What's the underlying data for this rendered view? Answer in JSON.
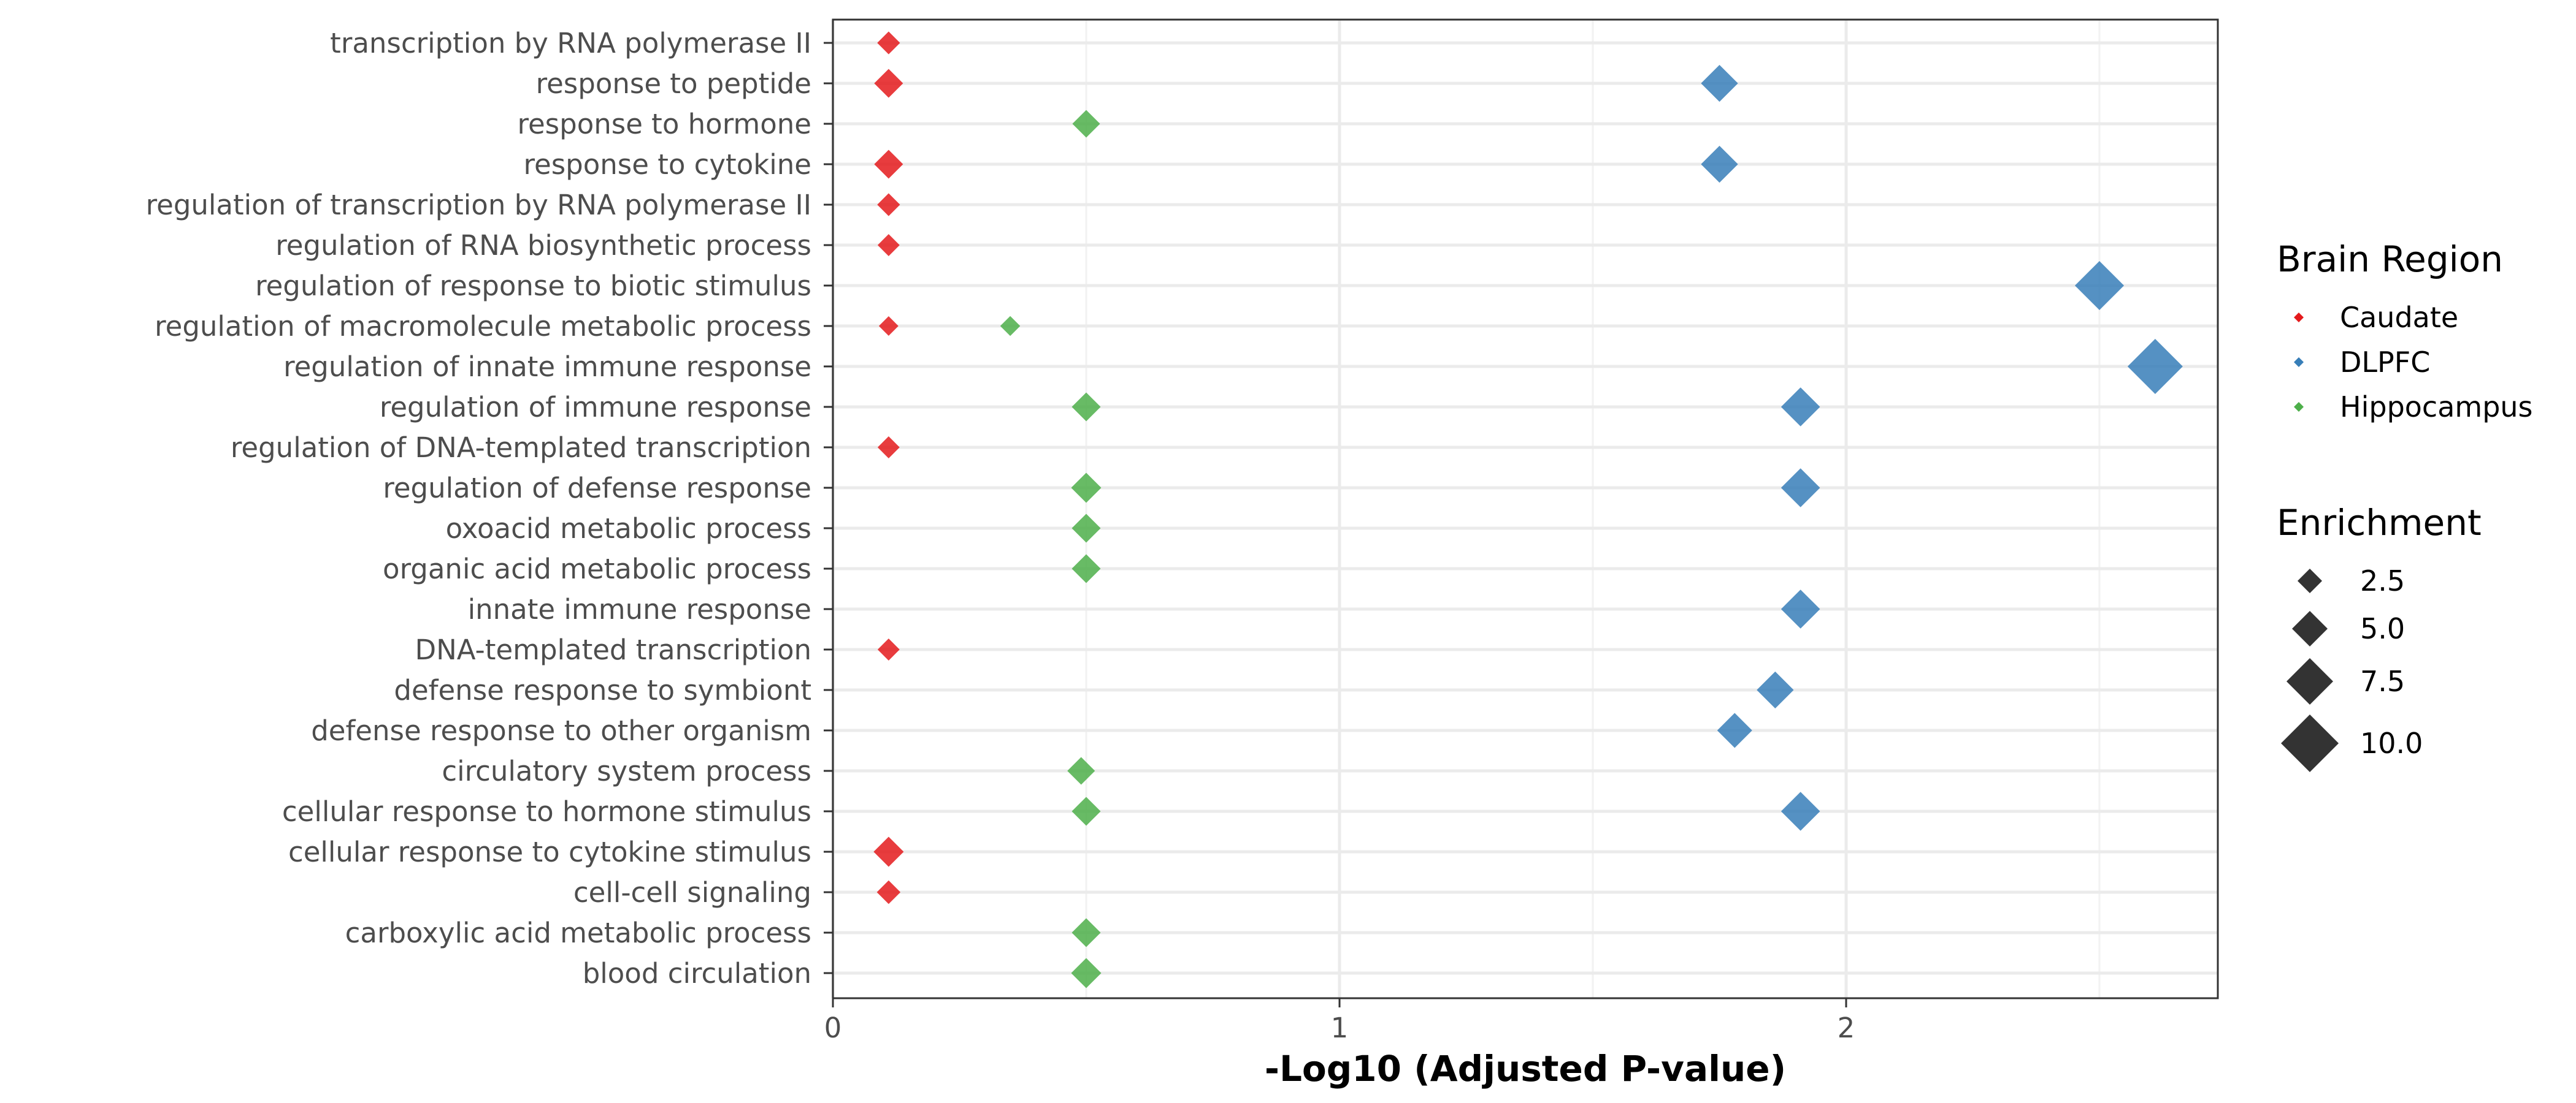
{
  "chart_data": {
    "type": "scatter",
    "xlabel": "-Log10 (Adjusted P-value)",
    "ylabel": "",
    "xlim": [
      0,
      2.72
    ],
    "x_ticks": [
      "0",
      "1",
      "2"
    ],
    "grid": true,
    "categories": [
      "transcription by RNA polymerase II",
      "response to peptide",
      "response to hormone",
      "response to cytokine",
      "regulation of transcription by RNA polymerase II",
      "regulation of RNA biosynthetic process",
      "regulation of response to biotic stimulus",
      "regulation of macromolecule metabolic process",
      "regulation of innate immune response",
      "regulation of immune response",
      "regulation of DNA-templated transcription",
      "regulation of defense response",
      "oxoacid metabolic process",
      "organic acid metabolic process",
      "innate immune response",
      "DNA-templated transcription",
      "defense response to symbiont",
      "defense response to other organism",
      "circulatory system process",
      "cellular response to hormone stimulus",
      "cellular response to cytokine stimulus",
      "cell-cell signaling",
      "carboxylic acid metabolic process",
      "blood circulation"
    ],
    "color_legend": {
      "title": "Brain Region",
      "entries": [
        {
          "name": "Caudate",
          "color": "#e41a1c"
        },
        {
          "name": "DLPFC",
          "color": "#377eb8"
        },
        {
          "name": "Hippocampus",
          "color": "#4daf4a"
        }
      ]
    },
    "size_legend": {
      "title": "Enrichment",
      "entries": [
        {
          "label": "2.5",
          "value": 2.5
        },
        {
          "label": "5.0",
          "value": 5.0
        },
        {
          "label": "7.5",
          "value": 7.5
        },
        {
          "label": "10.0",
          "value": 10.0
        }
      ]
    },
    "legend_position": "right",
    "series": [
      {
        "name": "Caudate",
        "points": [
          {
            "term": "transcription by RNA polymerase II",
            "x": 0.11,
            "enrichment": 2.0
          },
          {
            "term": "response to peptide",
            "x": 0.11,
            "enrichment": 3.5
          },
          {
            "term": "response to cytokine",
            "x": 0.11,
            "enrichment": 3.5
          },
          {
            "term": "regulation of transcription by RNA polymerase II",
            "x": 0.11,
            "enrichment": 2.0
          },
          {
            "term": "regulation of RNA biosynthetic process",
            "x": 0.11,
            "enrichment": 1.8
          },
          {
            "term": "regulation of macromolecule metabolic process",
            "x": 0.11,
            "enrichment": 1.2
          },
          {
            "term": "regulation of DNA-templated transcription",
            "x": 0.11,
            "enrichment": 1.8
          },
          {
            "term": "DNA-templated transcription",
            "x": 0.11,
            "enrichment": 1.8
          },
          {
            "term": "cellular response to cytokine stimulus",
            "x": 0.11,
            "enrichment": 3.8
          },
          {
            "term": "cell-cell signaling",
            "x": 0.11,
            "enrichment": 2.2
          }
        ]
      },
      {
        "name": "DLPFC",
        "points": [
          {
            "term": "response to peptide",
            "x": 1.75,
            "enrichment": 5.5
          },
          {
            "term": "response to cytokine",
            "x": 1.75,
            "enrichment": 5.5
          },
          {
            "term": "regulation of response to biotic stimulus",
            "x": 2.5,
            "enrichment": 8.5
          },
          {
            "term": "regulation of innate immune response",
            "x": 2.61,
            "enrichment": 10.0
          },
          {
            "term": "regulation of immune response",
            "x": 1.91,
            "enrichment": 6.0
          },
          {
            "term": "regulation of defense response",
            "x": 1.91,
            "enrichment": 6.0
          },
          {
            "term": "innate immune response",
            "x": 1.91,
            "enrichment": 6.0
          },
          {
            "term": "defense response to symbiont",
            "x": 1.86,
            "enrichment": 5.5
          },
          {
            "term": "defense response to other organism",
            "x": 1.78,
            "enrichment": 5.0
          },
          {
            "term": "cellular response to hormone stimulus",
            "x": 1.91,
            "enrichment": 6.0
          }
        ]
      },
      {
        "name": "Hippocampus",
        "points": [
          {
            "term": "response to hormone",
            "x": 0.5,
            "enrichment": 3.2
          },
          {
            "term": "regulation of macromolecule metabolic process",
            "x": 0.35,
            "enrichment": 1.3
          },
          {
            "term": "regulation of immune response",
            "x": 0.5,
            "enrichment": 3.5
          },
          {
            "term": "regulation of defense response",
            "x": 0.5,
            "enrichment": 3.8
          },
          {
            "term": "oxoacid metabolic process",
            "x": 0.5,
            "enrichment": 3.5
          },
          {
            "term": "organic acid metabolic process",
            "x": 0.5,
            "enrichment": 3.5
          },
          {
            "term": "circulatory system process",
            "x": 0.49,
            "enrichment": 3.2
          },
          {
            "term": "cellular response to hormone stimulus",
            "x": 0.5,
            "enrichment": 3.5
          },
          {
            "term": "carboxylic acid metabolic process",
            "x": 0.5,
            "enrichment": 3.5
          },
          {
            "term": "blood circulation",
            "x": 0.5,
            "enrichment": 3.8
          }
        ]
      }
    ]
  }
}
